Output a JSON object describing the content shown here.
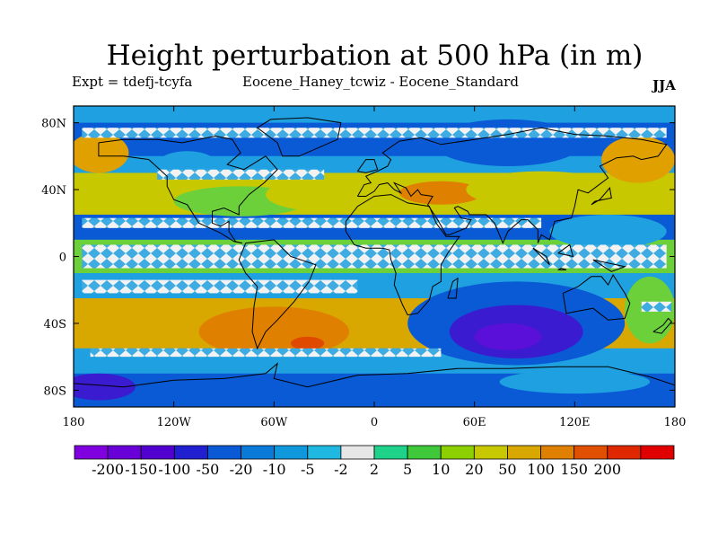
{
  "figure": {
    "title": "Height perturbation at 500 hPa (in m)",
    "left_string": "Expt = tdefj-tcyfa",
    "center_string": "Eocene_Haney_tcwiz - Eocene_Standard",
    "right_string": "JJA"
  },
  "map": {
    "projection": "cylindrical equidistant",
    "lon_range": [
      -180,
      180
    ],
    "lat_range": [
      -90,
      90
    ],
    "lat_ticks": [
      {
        "value": 80,
        "label": "80N"
      },
      {
        "value": 40,
        "label": "40N"
      },
      {
        "value": 0,
        "label": "0"
      },
      {
        "value": -40,
        "label": "40S"
      },
      {
        "value": -80,
        "label": "80S"
      }
    ],
    "lon_ticks": [
      {
        "value": -180,
        "label": "180"
      },
      {
        "value": -120,
        "label": "120W"
      },
      {
        "value": -60,
        "label": "60W"
      },
      {
        "value": 0,
        "label": "0"
      },
      {
        "value": 60,
        "label": "60E"
      },
      {
        "value": 120,
        "label": "120E"
      },
      {
        "value": 180,
        "label": "180"
      }
    ],
    "bands": [
      {
        "lat": [
          80,
          90
        ],
        "color": "#1fa0e0"
      },
      {
        "lat": [
          60,
          80
        ],
        "color": "#0a5ad6"
      },
      {
        "lat": [
          50,
          60
        ],
        "color": "#1fa0e0"
      },
      {
        "lat": [
          25,
          50
        ],
        "color": "#c8c800"
      },
      {
        "lat": [
          10,
          25
        ],
        "color": "#0a5ad6"
      },
      {
        "lat": [
          -10,
          10
        ],
        "color": "#6bd03a"
      },
      {
        "lat": [
          -25,
          -10
        ],
        "color": "#1fa0e0"
      },
      {
        "lat": [
          -55,
          -25
        ],
        "color": "#d8a800"
      },
      {
        "lat": [
          -70,
          -55
        ],
        "color": "#1fa0e0"
      },
      {
        "lat": [
          -90,
          -70
        ],
        "color": "#0a5ad6"
      }
    ],
    "features": [
      {
        "lon": -165,
        "lat": 62,
        "rx": 18,
        "ry": 12,
        "color": "#e0a000"
      },
      {
        "lon": -112,
        "lat": 55,
        "rx": 18,
        "ry": 8,
        "color": "#1fa0e0"
      },
      {
        "lon": -80,
        "lat": 33,
        "rx": 40,
        "ry": 9,
        "color": "#6bd03a"
      },
      {
        "lon": -30,
        "lat": 37,
        "rx": 35,
        "ry": 10,
        "color": "#c8c800"
      },
      {
        "lon": 40,
        "lat": 38,
        "rx": 25,
        "ry": 7,
        "color": "#e08000"
      },
      {
        "lon": 80,
        "lat": 68,
        "rx": 45,
        "ry": 14,
        "color": "#0a5ad6"
      },
      {
        "lon": 100,
        "lat": 40,
        "rx": 45,
        "ry": 11,
        "color": "#c8c800"
      },
      {
        "lon": 158,
        "lat": 58,
        "rx": 22,
        "ry": 14,
        "color": "#e0a000"
      },
      {
        "lon": 140,
        "lat": 15,
        "rx": 35,
        "ry": 10,
        "color": "#1fa0e0"
      },
      {
        "lon": -60,
        "lat": -45,
        "rx": 45,
        "ry": 15,
        "color": "#e08000"
      },
      {
        "lon": -40,
        "lat": -52,
        "rx": 10,
        "ry": 4,
        "color": "#e04a00"
      },
      {
        "lon": 85,
        "lat": -40,
        "rx": 65,
        "ry": 25,
        "color": "#0a5ad6"
      },
      {
        "lon": 85,
        "lat": -45,
        "rx": 40,
        "ry": 16,
        "color": "#3a1bd0"
      },
      {
        "lon": 80,
        "lat": -48,
        "rx": 20,
        "ry": 8,
        "color": "#5a10d8"
      },
      {
        "lon": 165,
        "lat": -32,
        "rx": 15,
        "ry": 20,
        "color": "#6bd03a"
      },
      {
        "lon": -165,
        "lat": -78,
        "rx": 22,
        "ry": 8,
        "color": "#3a1bd0"
      },
      {
        "lon": 120,
        "lat": -75,
        "rx": 45,
        "ry": 7,
        "color": "#1fa0e0"
      }
    ],
    "white_zones": [
      {
        "lat": [
          71,
          77
        ],
        "lon": [
          -175,
          175
        ]
      },
      {
        "lat": [
          46,
          52
        ],
        "lon": [
          -130,
          -30
        ]
      },
      {
        "lat": [
          17,
          23
        ],
        "lon": [
          -175,
          100
        ]
      },
      {
        "lat": [
          -7,
          7
        ],
        "lon": [
          -175,
          175
        ]
      },
      {
        "lat": [
          -22,
          -14
        ],
        "lon": [
          -175,
          -10
        ]
      },
      {
        "lat": [
          -60,
          -55
        ],
        "lon": [
          -170,
          40
        ]
      },
      {
        "lat": [
          -33,
          -27
        ],
        "lon": [
          160,
          178
        ]
      }
    ],
    "coastlines": [
      [
        [
          -165,
          68
        ],
        [
          -150,
          70
        ],
        [
          -130,
          70
        ],
        [
          -115,
          68
        ],
        [
          -95,
          72
        ],
        [
          -85,
          70
        ],
        [
          -80,
          62
        ],
        [
          -88,
          55
        ],
        [
          -78,
          52
        ],
        [
          -65,
          60
        ],
        [
          -58,
          52
        ],
        [
          -66,
          44
        ],
        [
          -75,
          37
        ],
        [
          -81,
          30
        ],
        [
          -81,
          25
        ],
        [
          -90,
          29
        ],
        [
          -97,
          27
        ],
        [
          -97,
          20
        ],
        [
          -92,
          18
        ],
        [
          -87,
          21
        ],
        [
          -87,
          15
        ],
        [
          -83,
          9
        ],
        [
          -79,
          8
        ],
        [
          -84,
          9
        ],
        [
          -92,
          14
        ],
        [
          -105,
          20
        ],
        [
          -112,
          31
        ],
        [
          -120,
          34
        ],
        [
          -124,
          42
        ],
        [
          -124,
          48
        ],
        [
          -135,
          58
        ],
        [
          -150,
          60
        ],
        [
          -165,
          60
        ],
        [
          -165,
          68
        ]
      ],
      [
        [
          -55,
          60
        ],
        [
          -45,
          60
        ],
        [
          -22,
          70
        ],
        [
          -20,
          80
        ],
        [
          -40,
          83
        ],
        [
          -62,
          82
        ],
        [
          -70,
          77
        ],
        [
          -58,
          68
        ],
        [
          -55,
          60
        ]
      ],
      [
        [
          -77,
          8
        ],
        [
          -60,
          10
        ],
        [
          -50,
          0
        ],
        [
          -35,
          -5
        ],
        [
          -39,
          -15
        ],
        [
          -48,
          -27
        ],
        [
          -58,
          -38
        ],
        [
          -65,
          -45
        ],
        [
          -70,
          -55
        ],
        [
          -73,
          -45
        ],
        [
          -72,
          -30
        ],
        [
          -70,
          -18
        ],
        [
          -77,
          -10
        ],
        [
          -81,
          -2
        ],
        [
          -77,
          8
        ]
      ],
      [
        [
          -10,
          36
        ],
        [
          -6,
          43
        ],
        [
          -2,
          44
        ],
        [
          -5,
          48
        ],
        [
          2,
          51
        ],
        [
          8,
          54
        ],
        [
          10,
          58
        ],
        [
          5,
          62
        ],
        [
          15,
          69
        ],
        [
          28,
          71
        ],
        [
          40,
          67
        ],
        [
          60,
          70
        ],
        [
          80,
          73
        ],
        [
          100,
          77
        ],
        [
          120,
          73
        ],
        [
          140,
          72
        ],
        [
          160,
          70
        ],
        [
          175,
          67
        ],
        [
          170,
          60
        ],
        [
          160,
          58
        ],
        [
          155,
          60
        ],
        [
          145,
          59
        ],
        [
          135,
          54
        ],
        [
          140,
          47
        ],
        [
          128,
          38
        ],
        [
          122,
          40
        ],
        [
          120,
          30
        ],
        [
          118,
          23
        ],
        [
          108,
          21
        ],
        [
          105,
          10
        ],
        [
          100,
          13
        ],
        [
          98,
          8
        ],
        [
          98,
          16
        ],
        [
          92,
          22
        ],
        [
          88,
          22
        ],
        [
          80,
          15
        ],
        [
          77,
          8
        ],
        [
          72,
          20
        ],
        [
          67,
          25
        ],
        [
          57,
          25
        ],
        [
          56,
          27
        ],
        [
          50,
          30
        ],
        [
          48,
          29
        ],
        [
          52,
          23
        ],
        [
          58,
          22
        ],
        [
          55,
          17
        ],
        [
          45,
          13
        ],
        [
          43,
          13
        ],
        [
          38,
          22
        ],
        [
          34,
          28
        ],
        [
          32,
          31
        ],
        [
          35,
          36
        ],
        [
          28,
          37
        ],
        [
          26,
          40
        ],
        [
          22,
          36
        ],
        [
          19,
          41
        ],
        [
          12,
          44
        ],
        [
          16,
          38
        ],
        [
          12,
          40
        ],
        [
          8,
          44
        ],
        [
          3,
          43
        ],
        [
          0,
          39
        ],
        [
          -5,
          36
        ],
        [
          -10,
          36
        ]
      ],
      [
        [
          -17,
          21
        ],
        [
          -17,
          15
        ],
        [
          -12,
          7
        ],
        [
          -5,
          5
        ],
        [
          5,
          5
        ],
        [
          9,
          4
        ],
        [
          10,
          -2
        ],
        [
          13,
          -10
        ],
        [
          12,
          -17
        ],
        [
          17,
          -29
        ],
        [
          20,
          -35
        ],
        [
          26,
          -34
        ],
        [
          33,
          -26
        ],
        [
          35,
          -18
        ],
        [
          40,
          -15
        ],
        [
          40,
          -5
        ],
        [
          44,
          2
        ],
        [
          51,
          12
        ],
        [
          43,
          12
        ],
        [
          37,
          20
        ],
        [
          33,
          30
        ],
        [
          20,
          32
        ],
        [
          10,
          37
        ],
        [
          0,
          36
        ],
        [
          -10,
          30
        ],
        [
          -17,
          21
        ]
      ],
      [
        [
          113,
          -22
        ],
        [
          122,
          -18
        ],
        [
          130,
          -12
        ],
        [
          136,
          -12
        ],
        [
          140,
          -17
        ],
        [
          143,
          -11
        ],
        [
          150,
          -22
        ],
        [
          153,
          -28
        ],
        [
          150,
          -37
        ],
        [
          140,
          -38
        ],
        [
          131,
          -31
        ],
        [
          115,
          -34
        ],
        [
          113,
          -22
        ]
      ],
      [
        [
          44,
          -25
        ],
        [
          47,
          -15
        ],
        [
          50,
          -13
        ],
        [
          49,
          -25
        ],
        [
          44,
          -25
        ]
      ],
      [
        [
          -10,
          51
        ],
        [
          -5,
          58
        ],
        [
          0,
          58
        ],
        [
          2,
          52
        ],
        [
          -5,
          50
        ],
        [
          -10,
          51
        ]
      ],
      [
        [
          130,
          31
        ],
        [
          135,
          34
        ],
        [
          141,
          41
        ],
        [
          142,
          35
        ],
        [
          132,
          33
        ],
        [
          130,
          31
        ]
      ],
      [
        [
          95,
          5
        ],
        [
          105,
          -5
        ],
        [
          103,
          0
        ],
        [
          95,
          5
        ]
      ],
      [
        [
          110,
          -8
        ],
        [
          115,
          -8
        ],
        [
          112,
          -7
        ],
        [
          110,
          -8
        ]
      ],
      [
        [
          110,
          2
        ],
        [
          117,
          7
        ],
        [
          119,
          0
        ],
        [
          110,
          2
        ]
      ],
      [
        [
          131,
          -2
        ],
        [
          150,
          -6
        ],
        [
          142,
          -9
        ],
        [
          131,
          -2
        ]
      ],
      [
        [
          167,
          -45
        ],
        [
          173,
          -41
        ],
        [
          176,
          -37
        ],
        [
          178,
          -39
        ],
        [
          172,
          -46
        ],
        [
          167,
          -45
        ]
      ],
      [
        [
          -180,
          -76
        ],
        [
          -150,
          -78
        ],
        [
          -120,
          -74
        ],
        [
          -90,
          -73
        ],
        [
          -65,
          -70
        ],
        [
          -58,
          -64
        ],
        [
          -60,
          -73
        ],
        [
          -40,
          -78
        ],
        [
          -10,
          -71
        ],
        [
          20,
          -70
        ],
        [
          50,
          -67
        ],
        [
          80,
          -67
        ],
        [
          110,
          -66
        ],
        [
          140,
          -66
        ],
        [
          165,
          -72
        ],
        [
          180,
          -77
        ]
      ]
    ]
  },
  "colorbar": {
    "colors": [
      "#8000e0",
      "#6a00d8",
      "#5200d0",
      "#2020d0",
      "#0a5ad6",
      "#0a7ad8",
      "#1098dc",
      "#1fb8e0",
      "#e6e6e6",
      "#1ed28a",
      "#3ec83a",
      "#8cd000",
      "#c8c800",
      "#d8a800",
      "#e08000",
      "#e05000",
      "#e02800",
      "#e00000"
    ],
    "labels": [
      "-200",
      "-150",
      "-100",
      "-50",
      "-20",
      "-10",
      "-5",
      "-2",
      "2",
      "5",
      "10",
      "20",
      "50",
      "100",
      "150",
      "200"
    ]
  }
}
